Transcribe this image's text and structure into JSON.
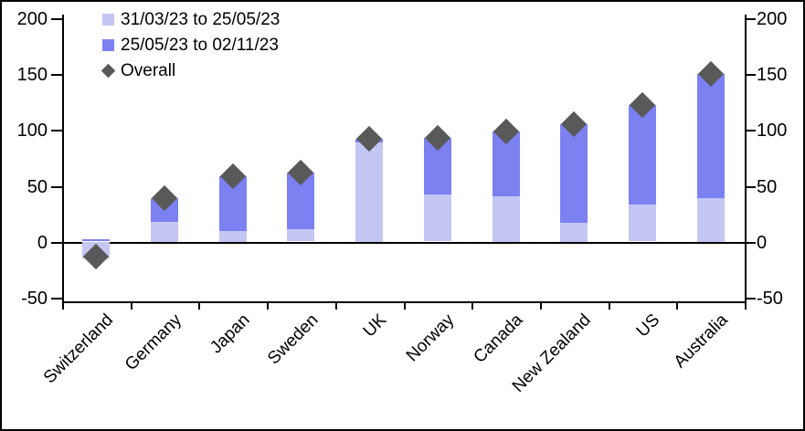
{
  "chart_data": {
    "type": "bar",
    "stacked": true,
    "title": "",
    "xlabel": "",
    "ylabel": "",
    "categories": [
      "Switzerland",
      "Germany",
      "Japan",
      "Sweden",
      "UK",
      "Norway",
      "Canada",
      "New Zealand",
      "US",
      "Australia"
    ],
    "series": [
      {
        "name": "31/03/23 to 25/05/23",
        "color": "#c4c6f4",
        "values": [
          -15,
          18,
          10,
          11,
          89,
          42,
          41,
          17,
          33,
          39
        ]
      },
      {
        "name": "25/05/23 to 02/11/23",
        "color": "#7c81f2",
        "values": [
          2,
          21,
          49,
          51,
          3,
          51,
          58,
          88,
          89,
          111
        ]
      }
    ],
    "overall": {
      "name": "Overall",
      "marker": "diamond",
      "color": "#595959",
      "values": [
        -13,
        39,
        59,
        62,
        92,
        93,
        99,
        105,
        122,
        150
      ]
    },
    "y_ticks": [
      200,
      150,
      100,
      50,
      0,
      -50
    ],
    "ylim": [
      -50,
      200
    ],
    "y_axis_sides": [
      "left",
      "right"
    ],
    "grid": false,
    "zero_line": true,
    "legend_position": "top-left",
    "category_label_rotation": -45
  },
  "legend": {
    "item1": "31/03/23 to 25/05/23",
    "item2": "25/05/23 to 02/11/23",
    "item3": "Overall"
  },
  "colors": {
    "series1": "#c4c6f4",
    "series2": "#7c81f2",
    "overall_marker": "#595959",
    "axis": "#000000",
    "background": "#ffffff"
  }
}
